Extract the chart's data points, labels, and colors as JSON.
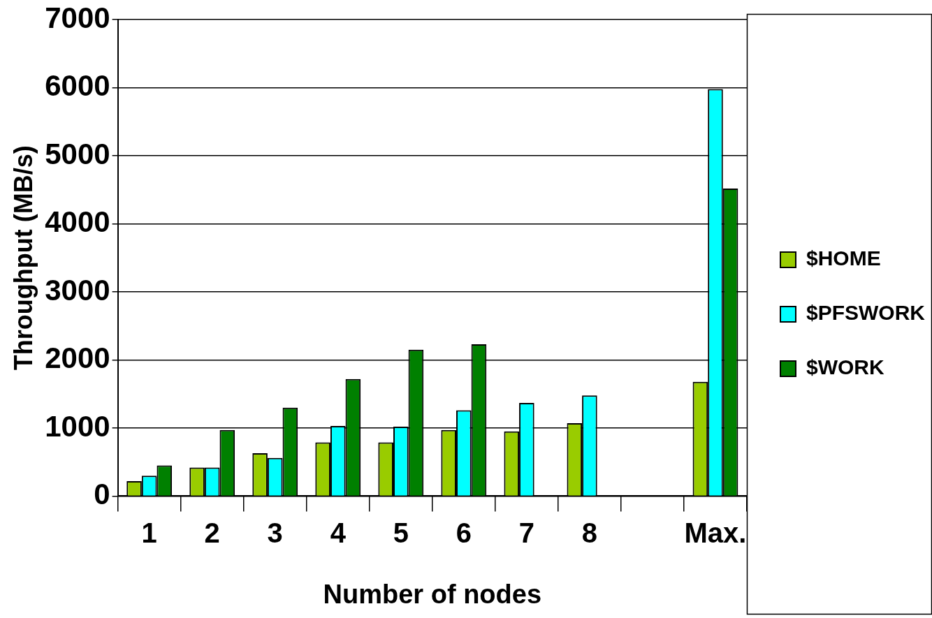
{
  "chart_data": {
    "type": "bar",
    "xlabel": "Number of nodes",
    "ylabel": "Throughput (MB/s)",
    "categories": [
      "1",
      "2",
      "3",
      "4",
      "5",
      "6",
      "7",
      "8",
      null,
      "Max."
    ],
    "series": [
      {
        "name": "$HOME",
        "color": "#99cc00",
        "values": [
          220,
          420,
          630,
          790,
          790,
          970,
          950,
          1070,
          null,
          1680
        ]
      },
      {
        "name": "$PFSWORK",
        "color": "#00ffff",
        "values": [
          300,
          420,
          560,
          1030,
          1020,
          1260,
          1370,
          1480,
          null,
          5980
        ]
      },
      {
        "name": "$WORK",
        "color": "#008000",
        "values": [
          450,
          970,
          1300,
          1720,
          2150,
          2230,
          null,
          null,
          null,
          4520
        ]
      }
    ],
    "ylim": [
      0,
      7000
    ],
    "yticks": [
      0,
      1000,
      2000,
      3000,
      4000,
      5000,
      6000,
      7000
    ],
    "grid": "y",
    "legend": "right"
  }
}
